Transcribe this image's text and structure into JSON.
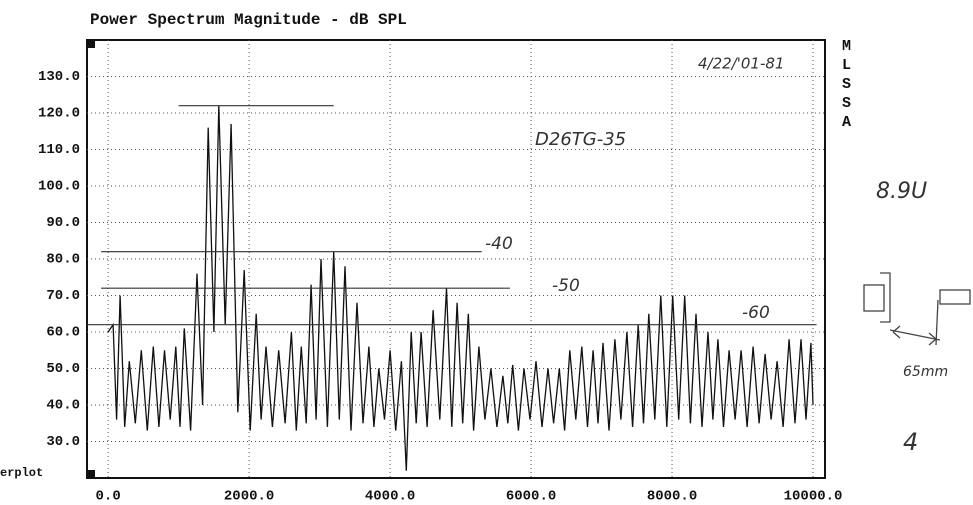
{
  "chart_data": {
    "type": "line",
    "title": "Power Spectrum Magnitude - dB SPL",
    "side_label": "MLSSA",
    "corner_label": "erplot",
    "xlim": [
      -300,
      10170
    ],
    "ylim": [
      20,
      140
    ],
    "xticks": [
      {
        "value": 0,
        "label": "0.0"
      },
      {
        "value": 2000,
        "label": "2000.0"
      },
      {
        "value": 4000,
        "label": "4000.0"
      },
      {
        "value": 6000,
        "label": "6000.0"
      },
      {
        "value": 8000,
        "label": "8000.0"
      },
      {
        "value": 10000,
        "label": "10000.0"
      }
    ],
    "yticks": [
      {
        "value": 30,
        "label": "30.0"
      },
      {
        "value": 40,
        "label": "40.0"
      },
      {
        "value": 50,
        "label": "50.0"
      },
      {
        "value": 60,
        "label": "60.0"
      },
      {
        "value": 70,
        "label": "70.0"
      },
      {
        "value": 80,
        "label": "80.0"
      },
      {
        "value": 90,
        "label": "90.0"
      },
      {
        "value": 100,
        "label": "100.0"
      },
      {
        "value": 110,
        "label": "110.0"
      },
      {
        "value": 120,
        "label": "120.0"
      },
      {
        "value": 130,
        "label": "130.0"
      }
    ],
    "grid": true,
    "color": "#111111",
    "x": [
      0,
      70,
      120,
      170,
      235,
      300,
      385,
      470,
      555,
      640,
      720,
      800,
      880,
      960,
      1020,
      1080,
      1170,
      1260,
      1340,
      1420,
      1500,
      1570,
      1660,
      1745,
      1840,
      1930,
      2015,
      2100,
      2170,
      2240,
      2330,
      2420,
      2510,
      2600,
      2670,
      2740,
      2810,
      2880,
      2950,
      3020,
      3110,
      3200,
      3280,
      3360,
      3445,
      3530,
      3615,
      3700,
      3770,
      3840,
      3920,
      4000,
      4080,
      4160,
      4230,
      4300,
      4370,
      4440,
      4525,
      4610,
      4705,
      4800,
      4875,
      4950,
      5030,
      5110,
      5185,
      5260,
      5345,
      5430,
      5515,
      5600,
      5670,
      5740,
      5820,
      5900,
      5985,
      6070,
      6155,
      6240,
      6320,
      6400,
      6475,
      6550,
      6635,
      6720,
      6800,
      6880,
      6950,
      7020,
      7105,
      7190,
      7275,
      7360,
      7440,
      7520,
      7595,
      7670,
      7755,
      7840,
      7925,
      8010,
      8095,
      8180,
      8260,
      8340,
      8425,
      8510,
      8580,
      8650,
      8730,
      8810,
      8895,
      8980,
      9065,
      9150,
      9235,
      9320,
      9405,
      9490,
      9575,
      9660,
      9745,
      9830,
      9900,
      9970,
      10000
    ],
    "values": [
      60,
      62,
      36,
      70,
      34,
      52,
      35,
      55,
      33,
      56,
      34,
      55,
      36,
      56,
      34,
      61,
      33,
      76,
      40,
      116,
      60,
      122,
      62,
      117,
      38,
      77,
      33,
      65,
      36,
      56,
      34,
      55,
      35,
      60,
      33,
      56,
      35,
      73,
      36,
      80,
      34,
      82,
      36,
      78,
      33,
      68,
      35,
      56,
      34,
      50,
      36,
      55,
      33,
      52,
      22,
      60,
      35,
      60,
      34,
      66,
      36,
      72,
      34,
      68,
      35,
      65,
      33,
      56,
      36,
      50,
      34,
      48,
      35,
      51,
      33,
      50,
      36,
      52,
      34,
      50,
      35,
      50,
      33,
      55,
      36,
      56,
      34,
      55,
      35,
      57,
      33,
      58,
      36,
      60,
      34,
      62,
      35,
      65,
      36,
      70,
      34,
      70,
      36,
      70,
      35,
      65,
      34,
      60,
      36,
      58,
      34,
      55,
      36,
      55,
      34,
      56,
      35,
      54,
      36,
      52,
      34,
      58,
      35,
      58,
      36,
      57,
      40
    ],
    "reference_lines": [
      {
        "value": 122,
        "x": [
          1000,
          3200
        ]
      },
      {
        "value": 82,
        "x": [
          -100,
          5300
        ],
        "label": "-40"
      },
      {
        "value": 72,
        "x": [
          -100,
          5700
        ],
        "label": "-50"
      },
      {
        "value": 62,
        "x": [
          -300,
          10050
        ],
        "label": "-60"
      }
    ],
    "annotations": [
      "4/22/'01-81",
      "D26TG-35",
      "8.9U",
      "65mm",
      "4"
    ]
  }
}
